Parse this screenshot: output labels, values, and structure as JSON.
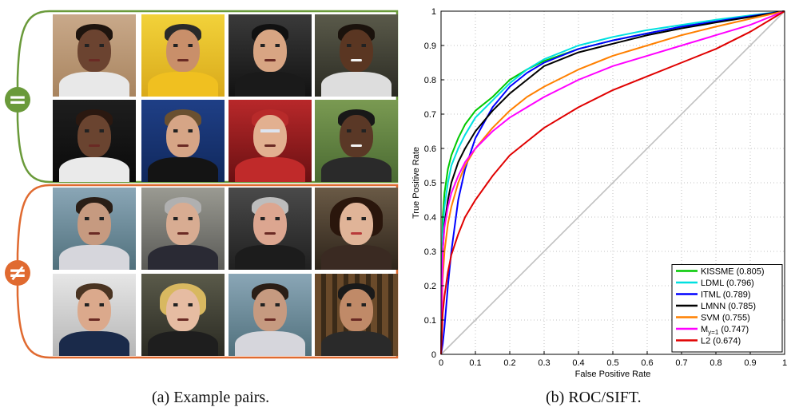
{
  "figure_a": {
    "caption": "(a) Example pairs.",
    "equal_symbol": "=",
    "not_equal_symbol": "≠",
    "colors": {
      "equal_bracket": "#6a9a3a",
      "not_equal_bracket": "#e06a30"
    }
  },
  "figure_b": {
    "caption": "(b) ROC/SIFT."
  },
  "chart_data": {
    "type": "line",
    "xlabel": "False Positive Rate",
    "ylabel": "True Positive Rate",
    "xlim": [
      0,
      1
    ],
    "ylim": [
      0,
      1
    ],
    "xticks": [
      "0",
      "0.1",
      "0.2",
      "0.3",
      "0.4",
      "0.5",
      "0.6",
      "0.7",
      "0.8",
      "0.9",
      "1"
    ],
    "yticks": [
      "0",
      "0.1",
      "0.2",
      "0.3",
      "0.4",
      "0.5",
      "0.6",
      "0.7",
      "0.8",
      "0.9",
      "1"
    ],
    "grid": true,
    "legend_position": "bottom-right",
    "series": [
      {
        "name": "KISSME (0.805)",
        "color": "#00c800",
        "x": [
          0,
          0.005,
          0.01,
          0.02,
          0.03,
          0.05,
          0.07,
          0.1,
          0.15,
          0.2,
          0.25,
          0.3,
          0.4,
          0.5,
          0.6,
          0.7,
          0.8,
          0.9,
          1.0
        ],
        "y": [
          0,
          0.4,
          0.47,
          0.54,
          0.58,
          0.63,
          0.67,
          0.71,
          0.75,
          0.8,
          0.83,
          0.855,
          0.89,
          0.915,
          0.935,
          0.955,
          0.97,
          0.985,
          1.0
        ]
      },
      {
        "name": "LDML (0.796)",
        "color": "#00e0e0",
        "x": [
          0,
          0.005,
          0.01,
          0.02,
          0.03,
          0.05,
          0.07,
          0.1,
          0.15,
          0.2,
          0.25,
          0.3,
          0.4,
          0.5,
          0.6,
          0.7,
          0.8,
          0.9,
          1.0
        ],
        "y": [
          0,
          0.35,
          0.43,
          0.5,
          0.55,
          0.6,
          0.64,
          0.69,
          0.74,
          0.79,
          0.83,
          0.86,
          0.9,
          0.925,
          0.945,
          0.96,
          0.975,
          0.988,
          1.0
        ]
      },
      {
        "name": "ITML (0.789)",
        "color": "#0000ff",
        "x": [
          0,
          0.005,
          0.01,
          0.02,
          0.03,
          0.05,
          0.07,
          0.1,
          0.15,
          0.2,
          0.25,
          0.3,
          0.4,
          0.5,
          0.6,
          0.7,
          0.8,
          0.9,
          1.0
        ],
        "y": [
          0,
          0.03,
          0.08,
          0.2,
          0.3,
          0.45,
          0.54,
          0.63,
          0.72,
          0.78,
          0.82,
          0.85,
          0.89,
          0.915,
          0.935,
          0.955,
          0.97,
          0.985,
          1.0
        ]
      },
      {
        "name": "LMNN (0.785)",
        "color": "#000000",
        "x": [
          0,
          0.005,
          0.01,
          0.02,
          0.03,
          0.05,
          0.07,
          0.1,
          0.15,
          0.2,
          0.25,
          0.3,
          0.4,
          0.5,
          0.6,
          0.7,
          0.8,
          0.9,
          1.0
        ],
        "y": [
          0,
          0.3,
          0.38,
          0.45,
          0.5,
          0.56,
          0.6,
          0.65,
          0.71,
          0.76,
          0.8,
          0.84,
          0.88,
          0.905,
          0.93,
          0.95,
          0.967,
          0.983,
          1.0
        ]
      },
      {
        "name": "SVM (0.755)",
        "color": "#ff8000",
        "x": [
          0,
          0.005,
          0.01,
          0.02,
          0.03,
          0.05,
          0.07,
          0.1,
          0.15,
          0.2,
          0.25,
          0.3,
          0.4,
          0.5,
          0.6,
          0.7,
          0.8,
          0.9,
          1.0
        ],
        "y": [
          0,
          0.22,
          0.3,
          0.38,
          0.43,
          0.5,
          0.55,
          0.6,
          0.66,
          0.71,
          0.75,
          0.78,
          0.83,
          0.87,
          0.9,
          0.93,
          0.955,
          0.978,
          1.0
        ]
      },
      {
        "name": "M_{y=1} (0.747)",
        "color": "#ff00ff",
        "x": [
          0,
          0.005,
          0.01,
          0.02,
          0.03,
          0.05,
          0.07,
          0.1,
          0.15,
          0.2,
          0.25,
          0.3,
          0.4,
          0.5,
          0.6,
          0.7,
          0.8,
          0.9,
          1.0
        ],
        "y": [
          0,
          0.3,
          0.37,
          0.43,
          0.47,
          0.52,
          0.56,
          0.6,
          0.65,
          0.69,
          0.72,
          0.75,
          0.8,
          0.84,
          0.87,
          0.9,
          0.93,
          0.96,
          1.0
        ]
      },
      {
        "name": "L2 (0.674)",
        "color": "#e00000",
        "x": [
          0,
          0.005,
          0.01,
          0.02,
          0.03,
          0.05,
          0.07,
          0.1,
          0.15,
          0.2,
          0.25,
          0.3,
          0.4,
          0.5,
          0.6,
          0.7,
          0.8,
          0.9,
          1.0
        ],
        "y": [
          0,
          0.12,
          0.17,
          0.24,
          0.29,
          0.35,
          0.4,
          0.45,
          0.52,
          0.58,
          0.62,
          0.66,
          0.72,
          0.77,
          0.81,
          0.85,
          0.89,
          0.94,
          1.0
        ]
      }
    ],
    "reference_line": {
      "x": [
        0,
        1
      ],
      "y": [
        0,
        1
      ],
      "color": "#c0c0c0"
    }
  }
}
